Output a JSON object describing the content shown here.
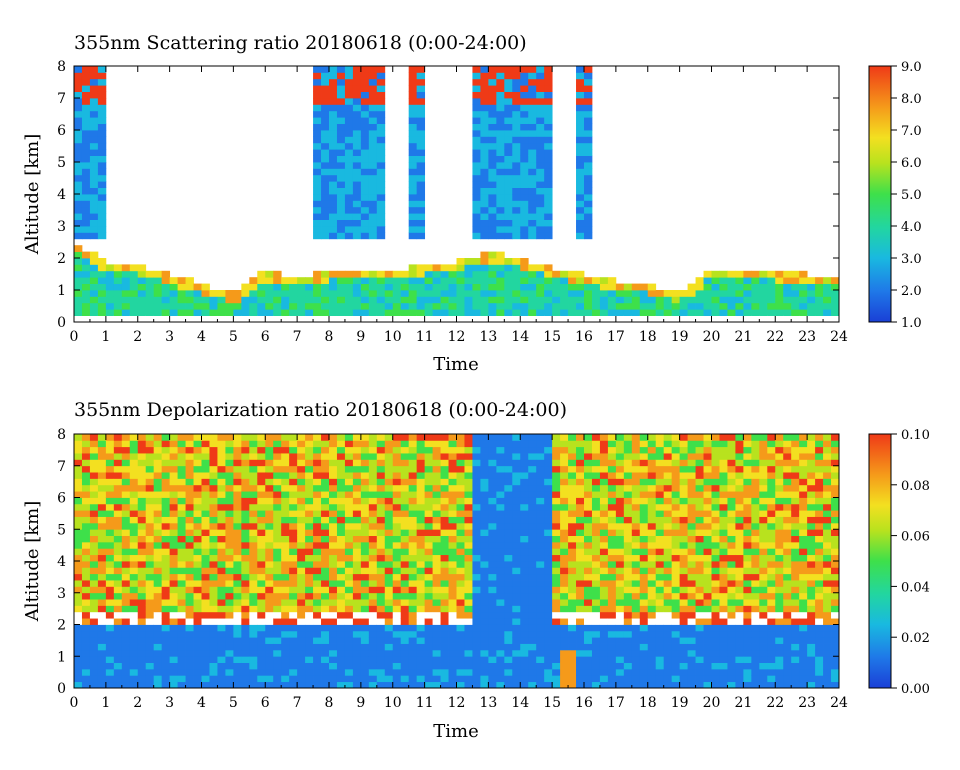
{
  "chart_data": [
    {
      "type": "heatmap",
      "title": "355nm Scattering ratio  20180618 (0:00-24:00)",
      "xlabel": "Time",
      "ylabel": "Altitude [km]",
      "xlim": [
        0,
        24
      ],
      "ylim": [
        0,
        8
      ],
      "x_ticks": [
        "0",
        "1",
        "2",
        "3",
        "4",
        "5",
        "6",
        "7",
        "8",
        "9",
        "10",
        "11",
        "12",
        "13",
        "14",
        "15",
        "16",
        "17",
        "18",
        "19",
        "20",
        "21",
        "22",
        "23",
        "24"
      ],
      "y_ticks": [
        "0",
        "1",
        "2",
        "3",
        "4",
        "5",
        "6",
        "7",
        "8"
      ],
      "colorbar": {
        "range": [
          1.0,
          9.0
        ],
        "tick_labels": [
          "1.0",
          "2.0",
          "3.0",
          "4.0",
          "5.0",
          "6.0",
          "7.0",
          "8.0",
          "9.0"
        ]
      },
      "features": {
        "boundary_layer_top_km": [
          [
            0,
            2.5
          ],
          [
            1,
            1.9
          ],
          [
            2,
            1.8
          ],
          [
            3,
            1.5
          ],
          [
            4,
            1.2
          ],
          [
            5,
            0.9
          ],
          [
            6,
            1.6
          ],
          [
            7,
            1.4
          ],
          [
            8,
            1.6
          ],
          [
            9,
            1.6
          ],
          [
            10,
            1.6
          ],
          [
            11,
            1.8
          ],
          [
            12,
            1.9
          ],
          [
            13,
            2.2
          ],
          [
            14,
            2.0
          ],
          [
            15,
            1.7
          ],
          [
            16,
            1.5
          ],
          [
            17,
            1.3
          ],
          [
            18,
            1.2
          ],
          [
            19,
            0.9
          ],
          [
            20,
            1.7
          ],
          [
            21,
            1.6
          ],
          [
            22,
            1.6
          ],
          [
            23,
            1.5
          ],
          [
            24,
            1.5
          ]
        ],
        "high_cloud_periods_h": [
          [
            0.0,
            0.9
          ],
          [
            7.6,
            9.7
          ],
          [
            10.5,
            11.0
          ],
          [
            12.6,
            14.9
          ],
          [
            15.7,
            16.3
          ]
        ],
        "ground_line_km": 0.2
      }
    },
    {
      "type": "heatmap",
      "title": "355nm Depolarization ratio  20180618 (0:00-24:00)",
      "xlabel": "Time",
      "ylabel": "Altitude [km]",
      "xlim": [
        0,
        24
      ],
      "ylim": [
        0,
        8
      ],
      "x_ticks": [
        "0",
        "1",
        "2",
        "3",
        "4",
        "5",
        "6",
        "7",
        "8",
        "9",
        "10",
        "11",
        "12",
        "13",
        "14",
        "15",
        "16",
        "17",
        "18",
        "19",
        "20",
        "21",
        "22",
        "23",
        "24"
      ],
      "y_ticks": [
        "0",
        "1",
        "2",
        "3",
        "4",
        "5",
        "6",
        "7",
        "8"
      ],
      "colorbar": {
        "range": [
          0.0,
          0.1
        ],
        "tick_labels": [
          "0.00",
          "0.02",
          "0.04",
          "0.06",
          "0.08",
          "0.10"
        ]
      },
      "features": {
        "noisy_free_troposphere_above_km": 2.5,
        "low_depol_boundary_layer_below_km": 2.0,
        "clear_columns_h": [
          [
            12.6,
            14.9
          ]
        ],
        "dust_spike_h": 15.5
      }
    }
  ]
}
